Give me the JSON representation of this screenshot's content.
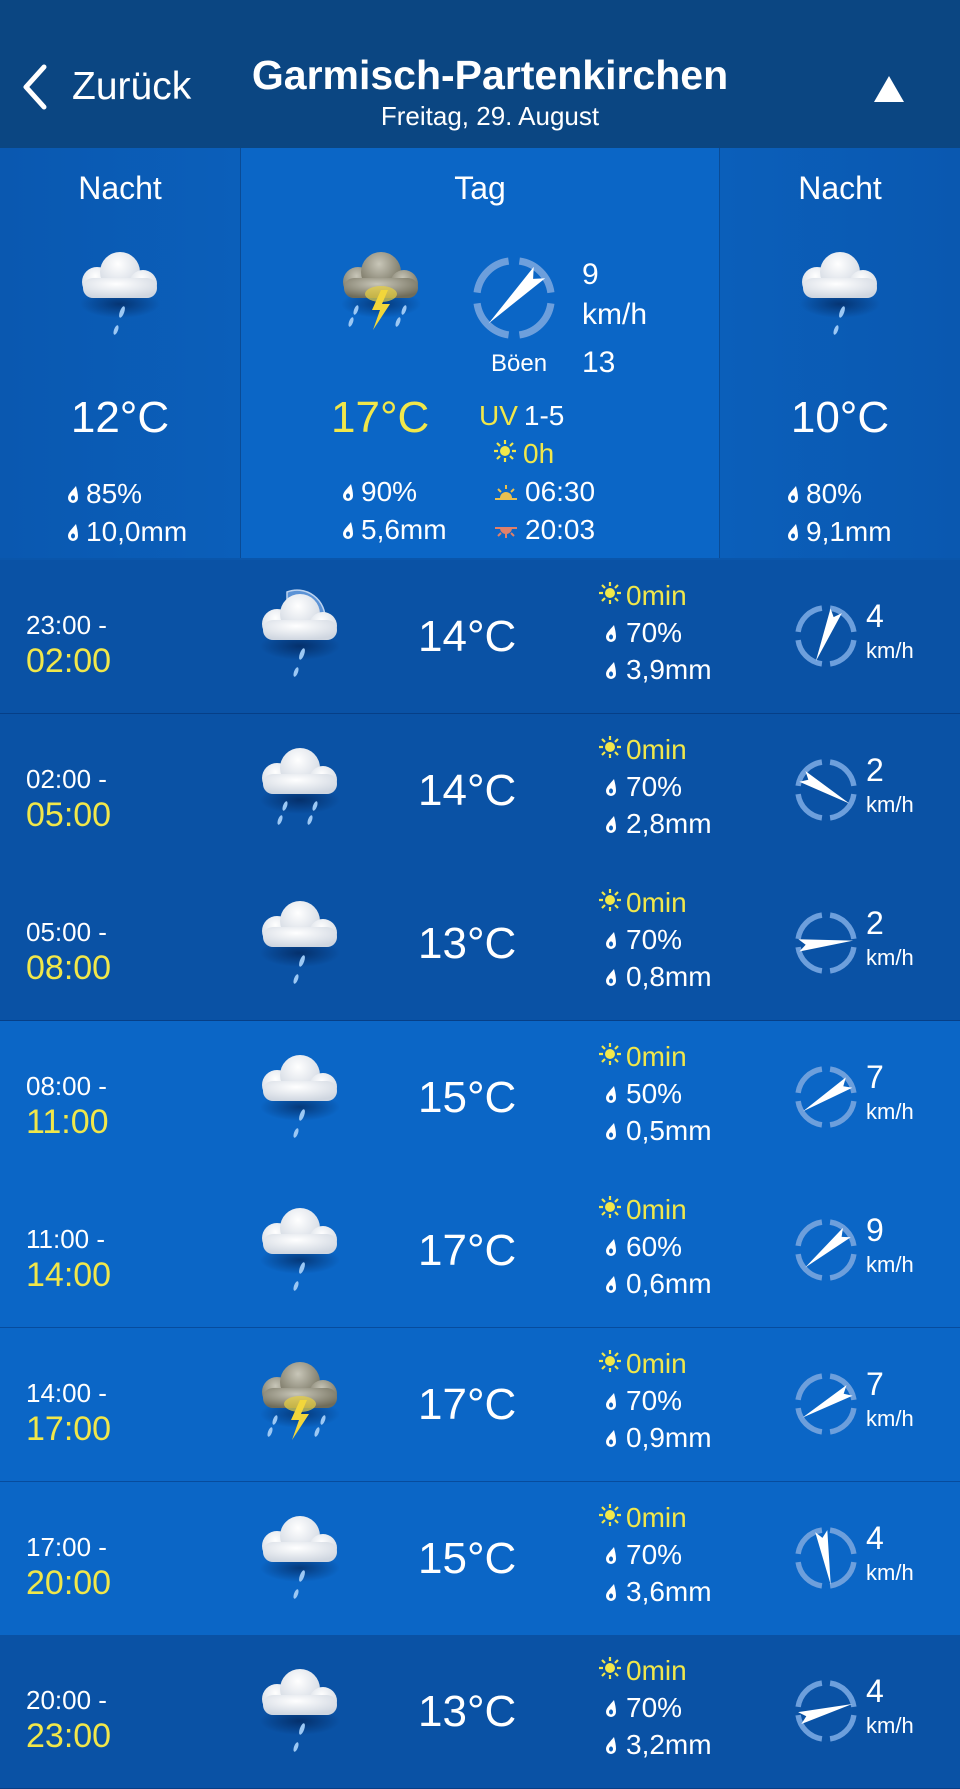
{
  "header": {
    "back_label": "Zurück",
    "title": "Garmisch-Partenkirchen",
    "subtitle": "Freitag, 29. August"
  },
  "colors": {
    "header": "#0b4682",
    "accent_yellow": "#f1e74a",
    "row_dark": "#0a52a5",
    "row_light": "#0b66c6"
  },
  "periods": [
    {
      "label": "Nacht",
      "icon": "cloud-rain",
      "temp": "12°C",
      "precip_prob": "85%",
      "precip_amount": "10,0mm"
    },
    {
      "label": "Tag",
      "icon": "cloud-thunderstorm",
      "temp": "17°C",
      "precip_prob": "90%",
      "precip_amount": "5,6mm",
      "wind_speed": "9",
      "wind_unit": "km/h",
      "wind_direction_deg": 45,
      "gust_label": "Böen",
      "gust_speed": "13",
      "uv_label": "UV",
      "uv_value": "1-5",
      "sunshine": "0h",
      "sunrise": "06:30",
      "sunset": "20:03"
    },
    {
      "label": "Nacht",
      "icon": "cloud-rain",
      "temp": "10°C",
      "precip_prob": "80%",
      "precip_amount": "9,1mm"
    }
  ],
  "hourly": [
    {
      "from": "23:00 -",
      "to": "02:00",
      "icon": "cloud-rain-moon",
      "temp": "14°C",
      "sunshine": "0min",
      "precip_prob": "70%",
      "precip_amount": "3,9mm",
      "wind_speed": "4",
      "wind_unit": "km/h",
      "wind_direction_deg": 22
    },
    {
      "from": "02:00 -",
      "to": "05:00",
      "icon": "cloud-rain-heavy",
      "temp": "14°C",
      "sunshine": "0min",
      "precip_prob": "70%",
      "precip_amount": "2,8mm",
      "wind_speed": "2",
      "wind_unit": "km/h",
      "wind_direction_deg": 300
    },
    {
      "from": "05:00 -",
      "to": "08:00",
      "icon": "cloud-rain",
      "temp": "13°C",
      "sunshine": "0min",
      "precip_prob": "70%",
      "precip_amount": "0,8mm",
      "wind_speed": "2",
      "wind_unit": "km/h",
      "wind_direction_deg": 265
    },
    {
      "from": "08:00 -",
      "to": "11:00",
      "icon": "cloud-rain",
      "temp": "15°C",
      "sunshine": "0min",
      "precip_prob": "50%",
      "precip_amount": "0,5mm",
      "wind_speed": "7",
      "wind_unit": "km/h",
      "wind_direction_deg": 58
    },
    {
      "from": "11:00 -",
      "to": "14:00",
      "icon": "cloud-rain",
      "temp": "17°C",
      "sunshine": "0min",
      "precip_prob": "60%",
      "precip_amount": "0,6mm",
      "wind_speed": "9",
      "wind_unit": "km/h",
      "wind_direction_deg": 50
    },
    {
      "from": "14:00 -",
      "to": "17:00",
      "icon": "cloud-thunderstorm",
      "temp": "17°C",
      "sunshine": "0min",
      "precip_prob": "70%",
      "precip_amount": "0,9mm",
      "wind_speed": "7",
      "wind_unit": "km/h",
      "wind_direction_deg": 60
    },
    {
      "from": "17:00 -",
      "to": "20:00",
      "icon": "cloud-rain",
      "temp": "15°C",
      "sunshine": "0min",
      "precip_prob": "70%",
      "precip_amount": "3,6mm",
      "wind_speed": "4",
      "wind_unit": "km/h",
      "wind_direction_deg": 350
    },
    {
      "from": "20:00 -",
      "to": "23:00",
      "icon": "cloud-rain",
      "temp": "13°C",
      "sunshine": "0min",
      "precip_prob": "70%",
      "precip_amount": "3,2mm",
      "wind_speed": "4",
      "wind_unit": "km/h",
      "wind_direction_deg": 255
    }
  ]
}
